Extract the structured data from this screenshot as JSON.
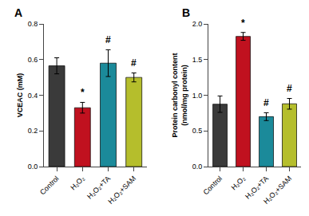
{
  "chart_data": [
    {
      "type": "bar",
      "title": "A",
      "ylabel": "VCEAC (mM)",
      "categories": [
        "Control",
        "H₂O₂",
        "H₂O₂+TA",
        "H₂O₂+SAM"
      ],
      "values": [
        0.565,
        0.33,
        0.58,
        0.5
      ],
      "errors": [
        0.045,
        0.03,
        0.075,
        0.025
      ],
      "colors": [
        "#3a3a3a",
        "#c0111f",
        "#1b8a9a",
        "#b5be2c"
      ],
      "ylim": [
        0,
        0.8
      ],
      "yticks": [
        {
          "value": 0,
          "label": "0.0"
        },
        0.2,
        0.4,
        0.6,
        0.8
      ],
      "annotations": [
        {
          "category": "H₂O₂",
          "text": "*"
        },
        {
          "category": "H₂O₂+TA",
          "text": "#"
        },
        {
          "category": "H₂O₂+SAM",
          "text": "#"
        }
      ],
      "grid": false
    },
    {
      "type": "bar",
      "title": "B",
      "ylabel": "Protein carbonyl content\n(nmol/mg protein)",
      "categories": [
        "Control",
        "H₂O₂",
        "H₂O₂+TA",
        "H₂O₂+SAM"
      ],
      "values": [
        0.875,
        1.825,
        0.7,
        0.88
      ],
      "errors": [
        0.115,
        0.055,
        0.055,
        0.075
      ],
      "colors": [
        "#3a3a3a",
        "#c0111f",
        "#1b8a9a",
        "#b5be2c"
      ],
      "ylim": [
        0,
        2.0
      ],
      "yticks": [
        {
          "value": 0,
          "label": "0.0"
        },
        0.5,
        {
          "value": 1,
          "label": "1.0"
        },
        1.5,
        {
          "value": 2,
          "label": "2.0"
        }
      ],
      "annotations": [
        {
          "category": "H₂O₂",
          "text": "*"
        },
        {
          "category": "H₂O₂+TA",
          "text": "#"
        },
        {
          "category": "H₂O₂+SAM",
          "text": "#"
        }
      ],
      "grid": false
    }
  ]
}
